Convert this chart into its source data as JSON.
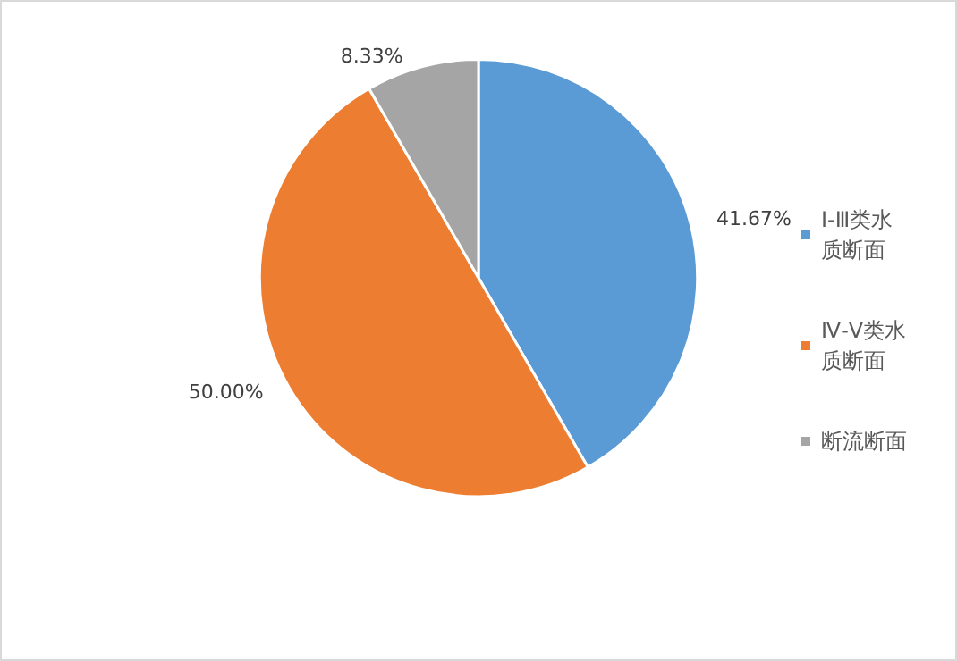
{
  "chart_data": {
    "type": "pie",
    "categories": [
      "Ⅰ-Ⅲ类水质断面",
      "Ⅳ-Ⅴ类水质断面",
      "断流断面"
    ],
    "values": [
      41.67,
      50,
      8.33
    ],
    "value_labels": [
      "41.67%",
      "50.00%",
      "8.33%"
    ],
    "colors": [
      "#5b9bd5",
      "#ed7d31",
      "#a5a5a5"
    ],
    "legend": "right"
  }
}
